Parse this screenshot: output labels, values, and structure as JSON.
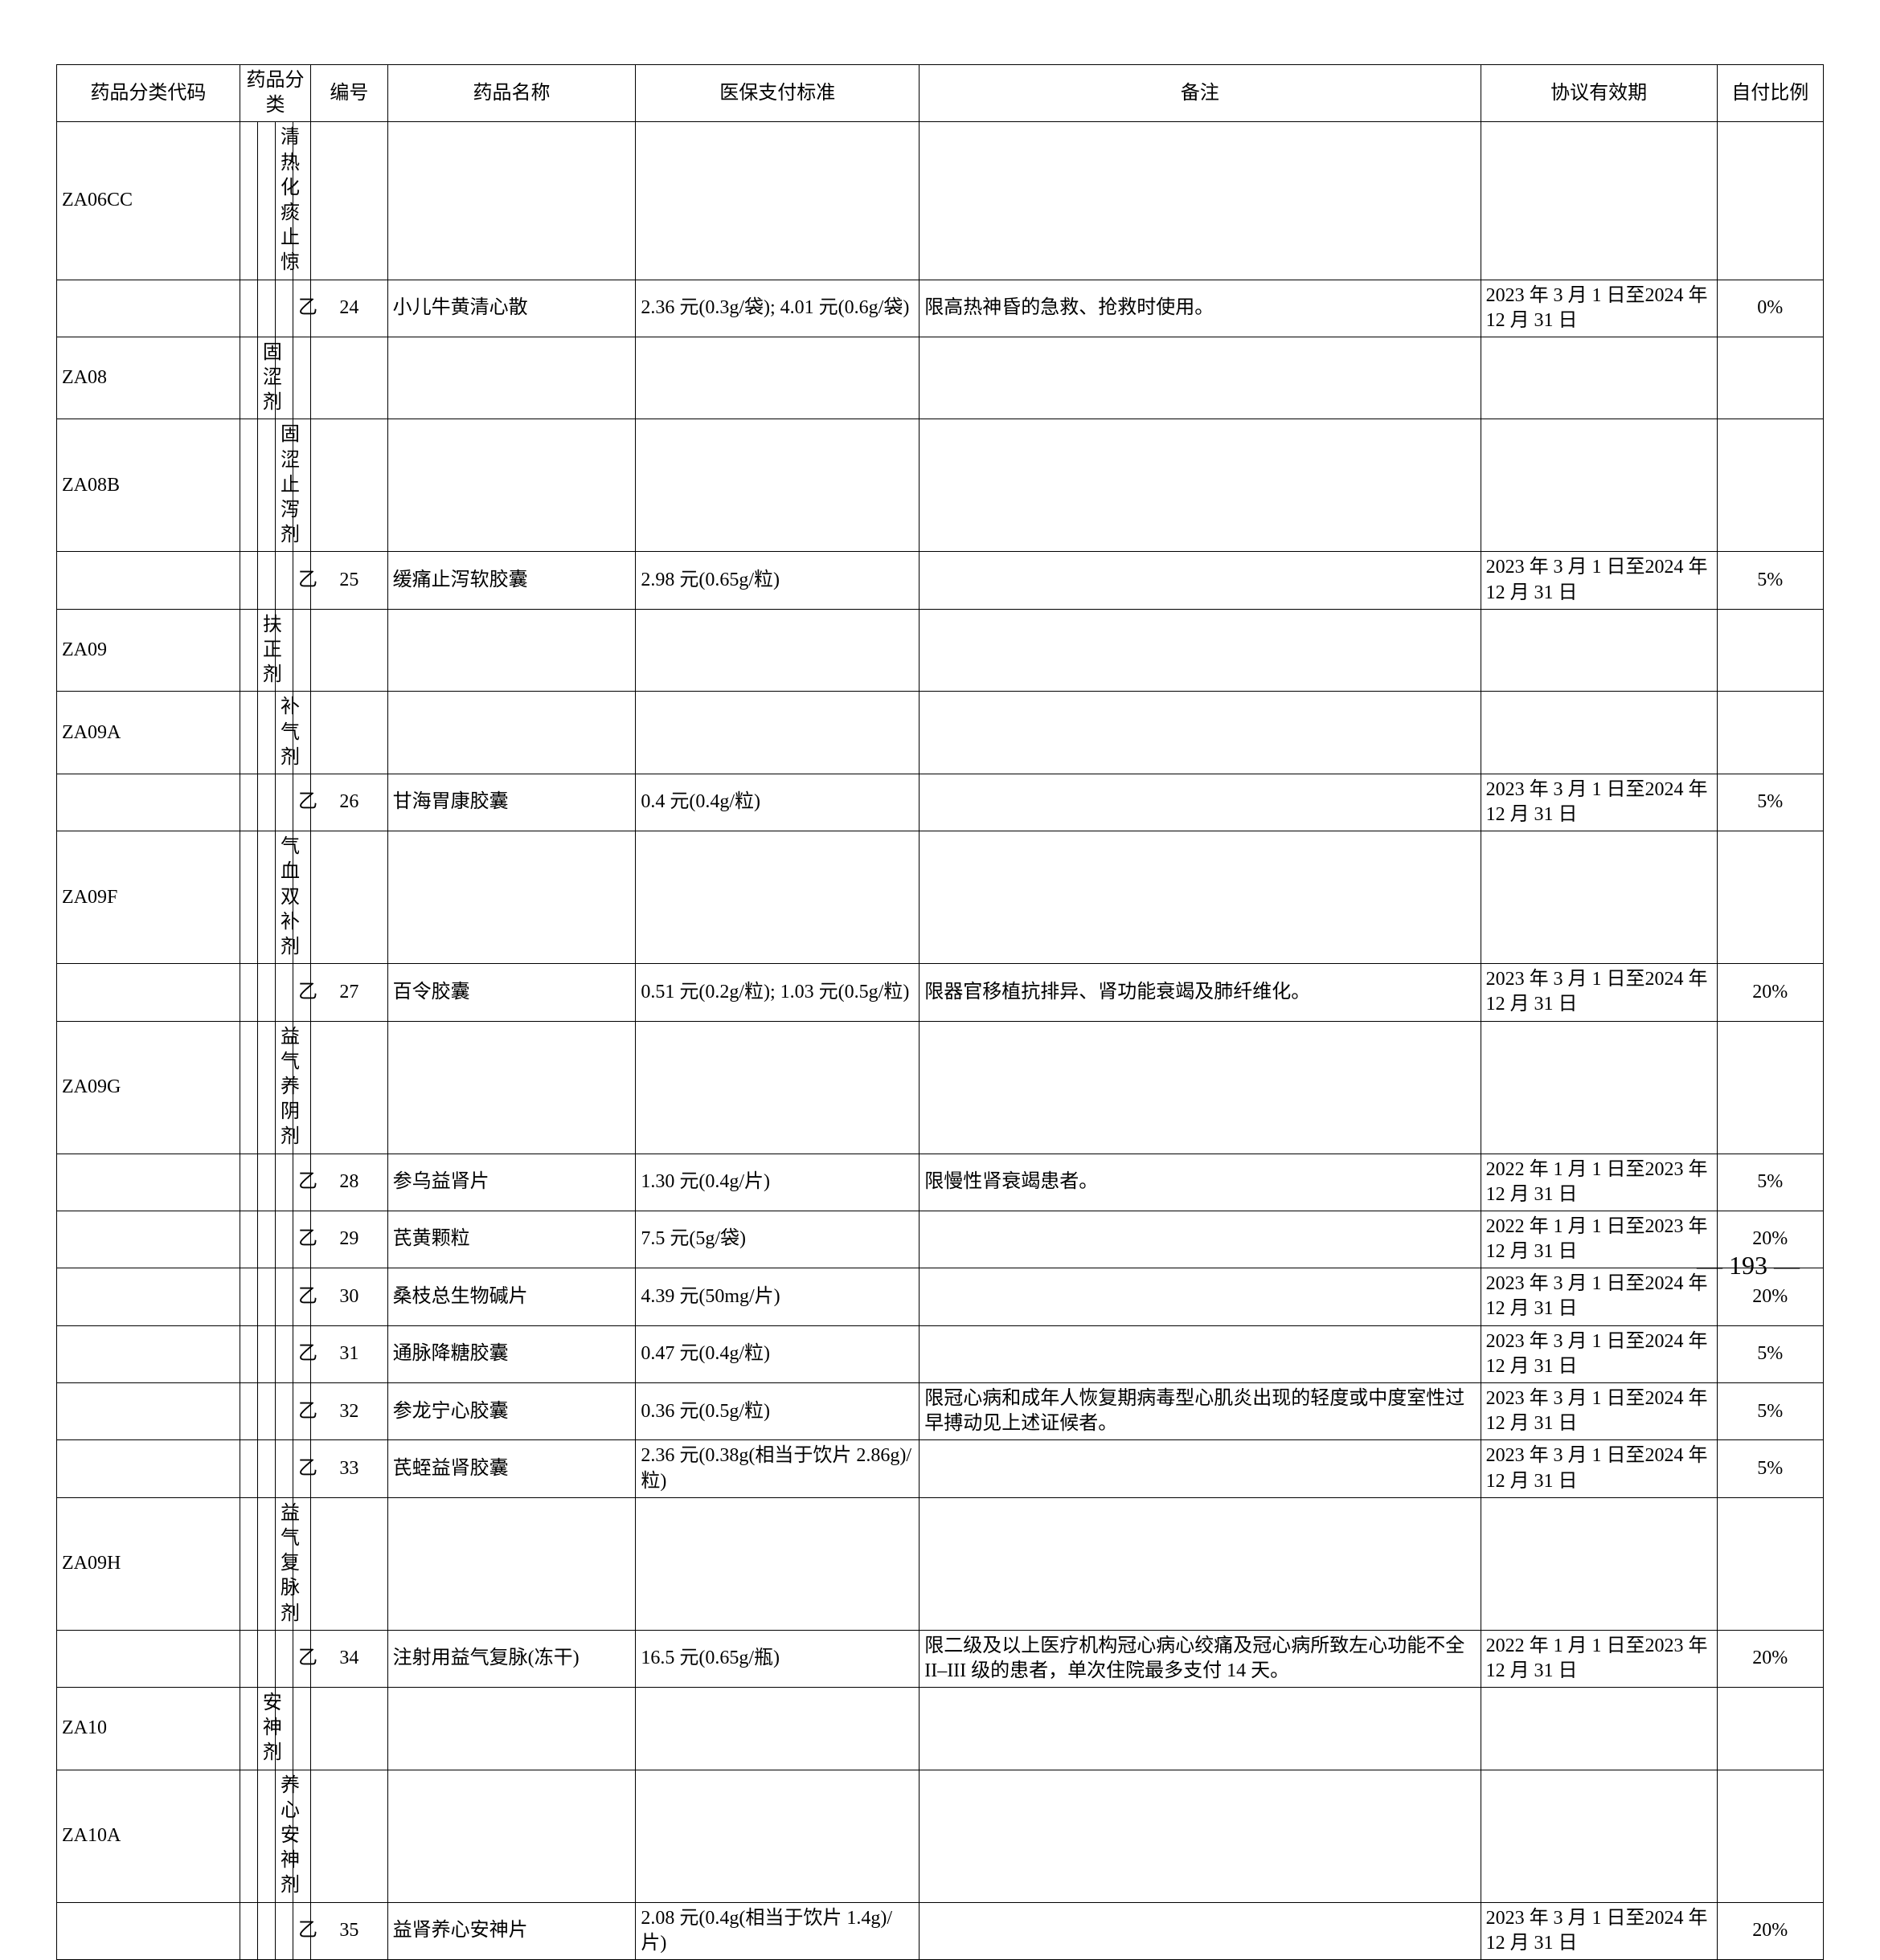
{
  "headers": {
    "code": "药品分类代码",
    "category": "药品分类",
    "num": "编号",
    "name": "药品名称",
    "standard": "医保支付标准",
    "note": "备注",
    "validity": "协议有效期",
    "ratio": "自付比例"
  },
  "rows": [
    {
      "code": "ZA06CC",
      "cat1": "",
      "cat2": "",
      "cat3": "清热化痰止惊",
      "cat4": "",
      "num": "",
      "name": "",
      "standard": "",
      "note": "",
      "validity": "",
      "ratio": ""
    },
    {
      "code": "",
      "cat1": "",
      "cat2": "",
      "cat3": "",
      "cat4": "乙",
      "num": "24",
      "name": "小儿牛黄清心散",
      "standard": "2.36 元(0.3g/袋); 4.01 元(0.6g/袋)",
      "note": "限高热神昏的急救、抢救时使用。",
      "validity": "2023 年 3 月 1 日至2024 年 12 月 31 日",
      "ratio": "0%"
    },
    {
      "code": "ZA08",
      "cat1": "",
      "cat2": "固涩剂",
      "cat3": "",
      "cat4": "",
      "num": "",
      "name": "",
      "standard": "",
      "note": "",
      "validity": "",
      "ratio": ""
    },
    {
      "code": "ZA08B",
      "cat1": "",
      "cat2": "",
      "cat3": "固涩止泻剂",
      "cat4": "",
      "num": "",
      "name": "",
      "standard": "",
      "note": "",
      "validity": "",
      "ratio": ""
    },
    {
      "code": "",
      "cat1": "",
      "cat2": "",
      "cat3": "",
      "cat4": "乙",
      "num": "25",
      "name": "缓痛止泻软胶囊",
      "standard": "2.98 元(0.65g/粒)",
      "note": "",
      "validity": "2023 年 3 月 1 日至2024 年 12 月 31 日",
      "ratio": "5%"
    },
    {
      "code": "ZA09",
      "cat1": "",
      "cat2": "扶正剂",
      "cat3": "",
      "cat4": "",
      "num": "",
      "name": "",
      "standard": "",
      "note": "",
      "validity": "",
      "ratio": ""
    },
    {
      "code": "ZA09A",
      "cat1": "",
      "cat2": "",
      "cat3": "补气剂",
      "cat4": "",
      "num": "",
      "name": "",
      "standard": "",
      "note": "",
      "validity": "",
      "ratio": ""
    },
    {
      "code": "",
      "cat1": "",
      "cat2": "",
      "cat3": "",
      "cat4": "乙",
      "num": "26",
      "name": "甘海胃康胶囊",
      "standard": "0.4 元(0.4g/粒)",
      "note": "",
      "validity": "2023 年 3 月 1 日至2024 年 12 月 31 日",
      "ratio": "5%"
    },
    {
      "code": "ZA09F",
      "cat1": "",
      "cat2": "",
      "cat3": "气血双补剂",
      "cat4": "",
      "num": "",
      "name": "",
      "standard": "",
      "note": "",
      "validity": "",
      "ratio": ""
    },
    {
      "code": "",
      "cat1": "",
      "cat2": "",
      "cat3": "",
      "cat4": "乙",
      "num": "27",
      "name": "百令胶囊",
      "standard": "0.51 元(0.2g/粒); 1.03 元(0.5g/粒)",
      "note": "限器官移植抗排异、肾功能衰竭及肺纤维化。",
      "validity": "2023 年 3 月 1 日至2024 年 12 月 31 日",
      "ratio": "20%"
    },
    {
      "code": "ZA09G",
      "cat1": "",
      "cat2": "",
      "cat3": "益气养阴剂",
      "cat4": "",
      "num": "",
      "name": "",
      "standard": "",
      "note": "",
      "validity": "",
      "ratio": ""
    },
    {
      "code": "",
      "cat1": "",
      "cat2": "",
      "cat3": "",
      "cat4": "乙",
      "num": "28",
      "name": "参乌益肾片",
      "standard": "1.30 元(0.4g/片)",
      "note": "限慢性肾衰竭患者。",
      "validity": "2022 年 1 月 1 日至2023 年 12 月 31 日",
      "ratio": "5%"
    },
    {
      "code": "",
      "cat1": "",
      "cat2": "",
      "cat3": "",
      "cat4": "乙",
      "num": "29",
      "name": "芪黄颗粒",
      "standard": "7.5 元(5g/袋)",
      "note": "",
      "validity": "2022 年 1 月 1 日至2023 年 12 月 31 日",
      "ratio": "20%"
    },
    {
      "code": "",
      "cat1": "",
      "cat2": "",
      "cat3": "",
      "cat4": "乙",
      "num": "30",
      "name": "桑枝总生物碱片",
      "standard": "4.39 元(50mg/片)",
      "note": "",
      "validity": "2023 年 3 月 1 日至2024 年 12 月 31 日",
      "ratio": "20%"
    },
    {
      "code": "",
      "cat1": "",
      "cat2": "",
      "cat3": "",
      "cat4": "乙",
      "num": "31",
      "name": "通脉降糖胶囊",
      "standard": "0.47 元(0.4g/粒)",
      "note": "",
      "validity": "2023 年 3 月 1 日至2024 年 12 月 31 日",
      "ratio": "5%"
    },
    {
      "code": "",
      "cat1": "",
      "cat2": "",
      "cat3": "",
      "cat4": "乙",
      "num": "32",
      "name": "参龙宁心胶囊",
      "standard": "0.36 元(0.5g/粒)",
      "note": "限冠心病和成年人恢复期病毒型心肌炎出现的轻度或中度室性过早搏动见上述证候者。",
      "validity": "2023 年 3 月 1 日至2024 年 12 月 31 日",
      "ratio": "5%"
    },
    {
      "code": "",
      "cat1": "",
      "cat2": "",
      "cat3": "",
      "cat4": "乙",
      "num": "33",
      "name": "芪蛭益肾胶囊",
      "standard": "2.36 元(0.38g(相当于饮片 2.86g)/粒)",
      "note": "",
      "validity": "2023 年 3 月 1 日至2024 年 12 月 31 日",
      "ratio": "5%"
    },
    {
      "code": "ZA09H",
      "cat1": "",
      "cat2": "",
      "cat3": "益气复脉剂",
      "cat4": "",
      "num": "",
      "name": "",
      "standard": "",
      "note": "",
      "validity": "",
      "ratio": ""
    },
    {
      "code": "",
      "cat1": "",
      "cat2": "",
      "cat3": "",
      "cat4": "乙",
      "num": "34",
      "name": "注射用益气复脉(冻干)",
      "standard": "16.5 元(0.65g/瓶)",
      "note": "限二级及以上医疗机构冠心病心绞痛及冠心病所致左心功能不全 II–III 级的患者，单次住院最多支付 14 天。",
      "validity": "2022 年 1 月 1 日至2023 年 12 月 31 日",
      "ratio": "20%"
    },
    {
      "code": "ZA10",
      "cat1": "",
      "cat2": "安神剂",
      "cat3": "",
      "cat4": "",
      "num": "",
      "name": "",
      "standard": "",
      "note": "",
      "validity": "",
      "ratio": ""
    },
    {
      "code": "ZA10A",
      "cat1": "",
      "cat2": "",
      "cat3": "养心安神剂",
      "cat4": "",
      "num": "",
      "name": "",
      "standard": "",
      "note": "",
      "validity": "",
      "ratio": ""
    },
    {
      "code": "",
      "cat1": "",
      "cat2": "",
      "cat3": "",
      "cat4": "乙",
      "num": "35",
      "name": "益肾养心安神片",
      "standard": "2.08 元(0.4g(相当于饮片 1.4g)/片)",
      "note": "",
      "validity": "2023 年 3 月 1 日至2024 年 12 月 31 日",
      "ratio": "20%"
    }
  ],
  "pageNumber": "— 193 —"
}
